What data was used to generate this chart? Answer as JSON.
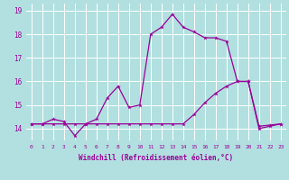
{
  "xlabel": "Windchill (Refroidissement éolien,°C)",
  "bg_color": "#b2e0e0",
  "grid_color": "#ffffff",
  "line_color": "#990099",
  "x": [
    0,
    1,
    2,
    3,
    4,
    5,
    6,
    7,
    8,
    9,
    10,
    11,
    12,
    13,
    14,
    15,
    16,
    17,
    18,
    19,
    20,
    21,
    22,
    23
  ],
  "line1": [
    14.2,
    14.2,
    14.4,
    14.3,
    13.7,
    14.2,
    14.4,
    15.3,
    15.8,
    14.9,
    15.0,
    18.0,
    18.3,
    18.85,
    18.3,
    18.1,
    17.85,
    17.85,
    17.7,
    16.0,
    16.0,
    14.0,
    14.1,
    14.2
  ],
  "line2": [
    14.2,
    14.2,
    14.2,
    14.2,
    14.2,
    14.2,
    14.2,
    14.2,
    14.2,
    14.2,
    14.2,
    14.2,
    14.2,
    14.2,
    14.2,
    14.6,
    15.1,
    15.5,
    15.8,
    16.0,
    16.0,
    14.1,
    14.15,
    14.2
  ],
  "ylim": [
    13.5,
    19.3
  ],
  "yticks": [
    14,
    15,
    16,
    17,
    18,
    19
  ],
  "xticks": [
    0,
    1,
    2,
    3,
    4,
    5,
    6,
    7,
    8,
    9,
    10,
    11,
    12,
    13,
    14,
    15,
    16,
    17,
    18,
    19,
    20,
    21,
    22,
    23
  ]
}
